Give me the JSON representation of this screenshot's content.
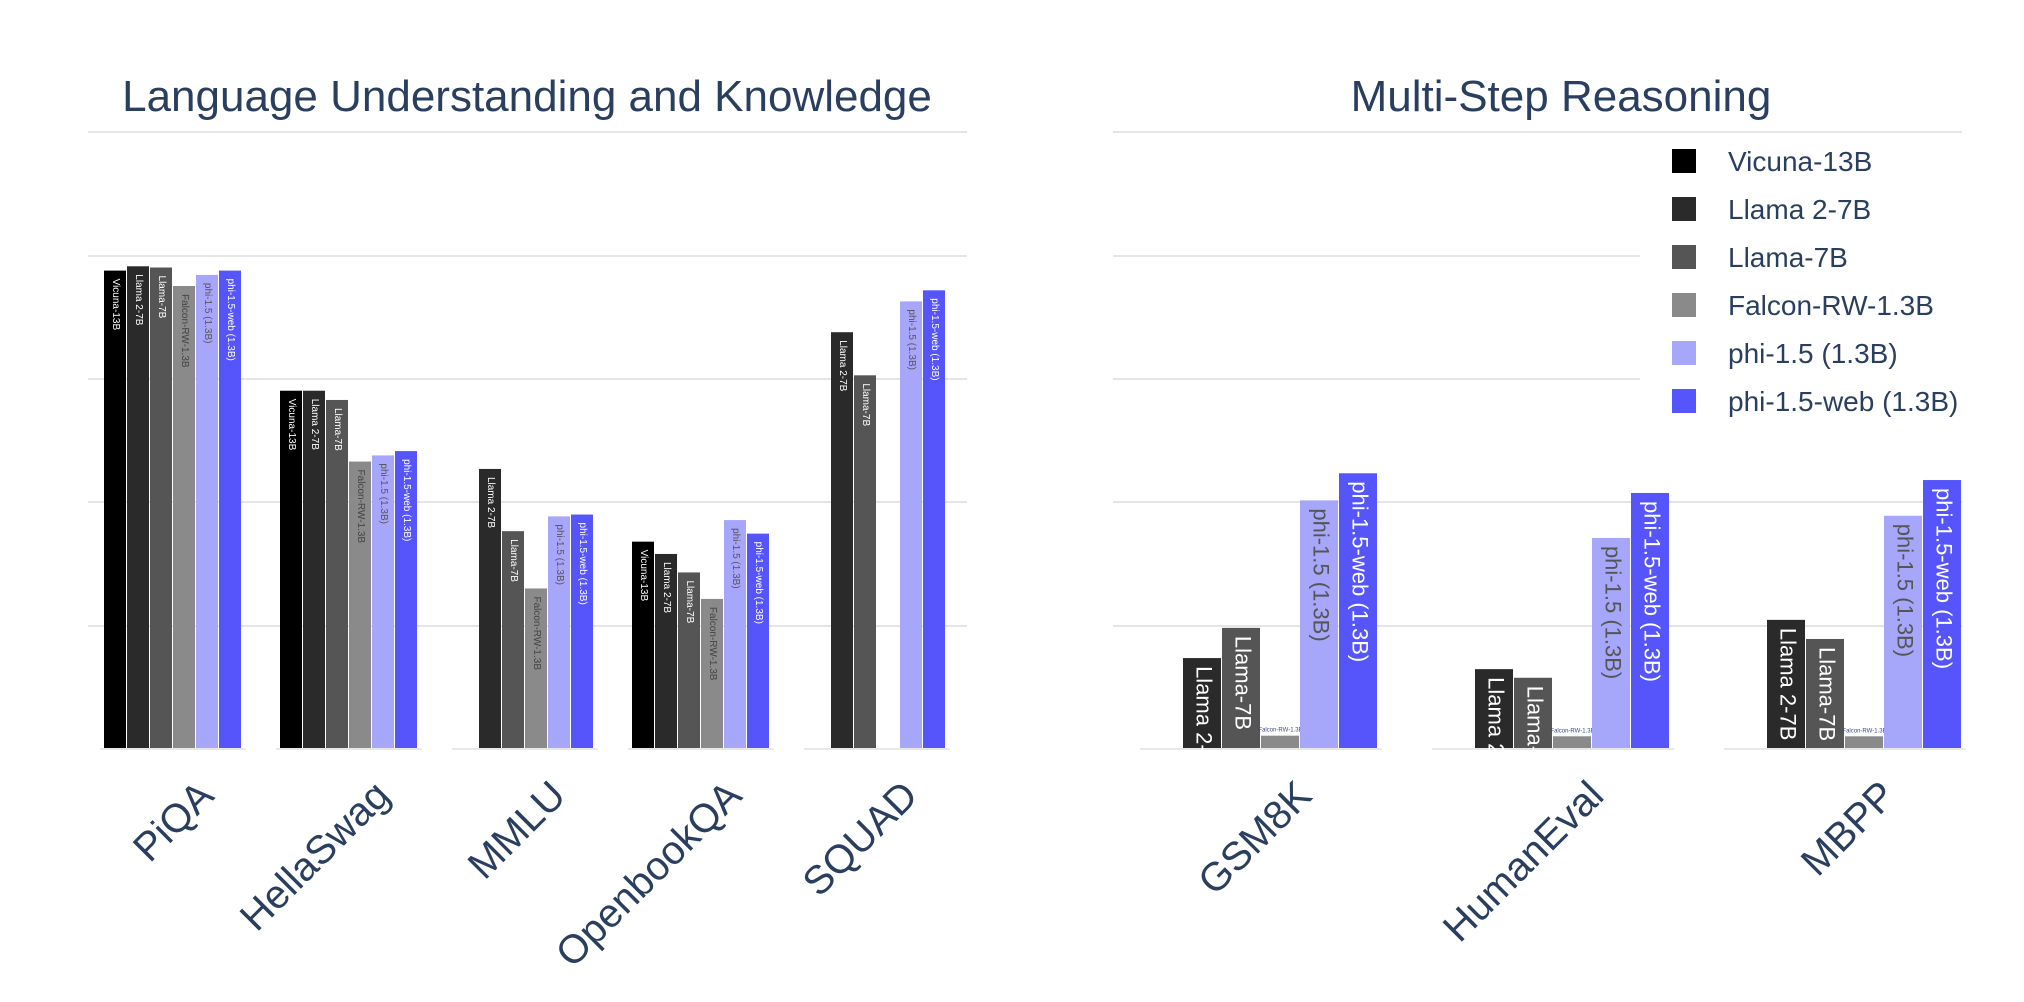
{
  "legend": {
    "items": [
      {
        "name": "Vicuna-13B",
        "color": "#000000"
      },
      {
        "name": "Llama 2-7B",
        "color": "#2a2a2a"
      },
      {
        "name": "Llama-7B",
        "color": "#555555"
      },
      {
        "name": "Falcon-RW-1.3B",
        "color": "#8a8a8a"
      },
      {
        "name": "phi-1.5 (1.3B)",
        "color": "#a6a6fa"
      },
      {
        "name": "phi-1.5-web (1.3B)",
        "color": "#5555fb"
      }
    ]
  },
  "chart_data": [
    {
      "type": "bar",
      "title": "Language Understanding and Knowledge",
      "categories": [
        "PiQA",
        "HellaSwag",
        "MMLU",
        "OpenbookQA",
        "SQUAD"
      ],
      "ylim": [
        0,
        100
      ],
      "grid": true,
      "bar_labels": "series-name",
      "series": [
        {
          "name": "Vicuna-13B",
          "values": [
            77.5,
            58,
            null,
            33.5,
            null
          ]
        },
        {
          "name": "Llama 2-7B",
          "values": [
            78.2,
            58,
            45.3,
            31.5,
            67.5
          ]
        },
        {
          "name": "Llama-7B",
          "values": [
            78,
            56.5,
            35.2,
            28.5,
            60.5
          ]
        },
        {
          "name": "Falcon-RW-1.3B",
          "values": [
            75,
            46.5,
            25.9,
            24.2,
            null
          ]
        },
        {
          "name": "phi-1.5 (1.3B)",
          "values": [
            76.8,
            47.5,
            37.6,
            37,
            72.5
          ]
        },
        {
          "name": "phi-1.5-web (1.3B)",
          "values": [
            77.5,
            48.2,
            37.9,
            34.8,
            74.3
          ]
        }
      ]
    },
    {
      "type": "bar",
      "title": "Multi-Step Reasoning",
      "categories": [
        "GSM8K",
        "HumanEval",
        "MBPP"
      ],
      "ylim": [
        0,
        100
      ],
      "grid": true,
      "bar_labels": "series-name",
      "legend_position": "top-right",
      "series": [
        {
          "name": "Vicuna-13B",
          "values": [
            null,
            null,
            null
          ]
        },
        {
          "name": "Llama 2-7B",
          "values": [
            14.6,
            12.8,
            20.8
          ]
        },
        {
          "name": "Llama-7B",
          "values": [
            19.5,
            11.4,
            17.7
          ]
        },
        {
          "name": "Falcon-RW-1.3B",
          "values": [
            2,
            1.9,
            1.9
          ]
        },
        {
          "name": "phi-1.5 (1.3B)",
          "values": [
            40.2,
            34.1,
            37.7
          ]
        },
        {
          "name": "phi-1.5-web (1.3B)",
          "values": [
            44.6,
            41.4,
            43.5
          ]
        }
      ]
    }
  ]
}
